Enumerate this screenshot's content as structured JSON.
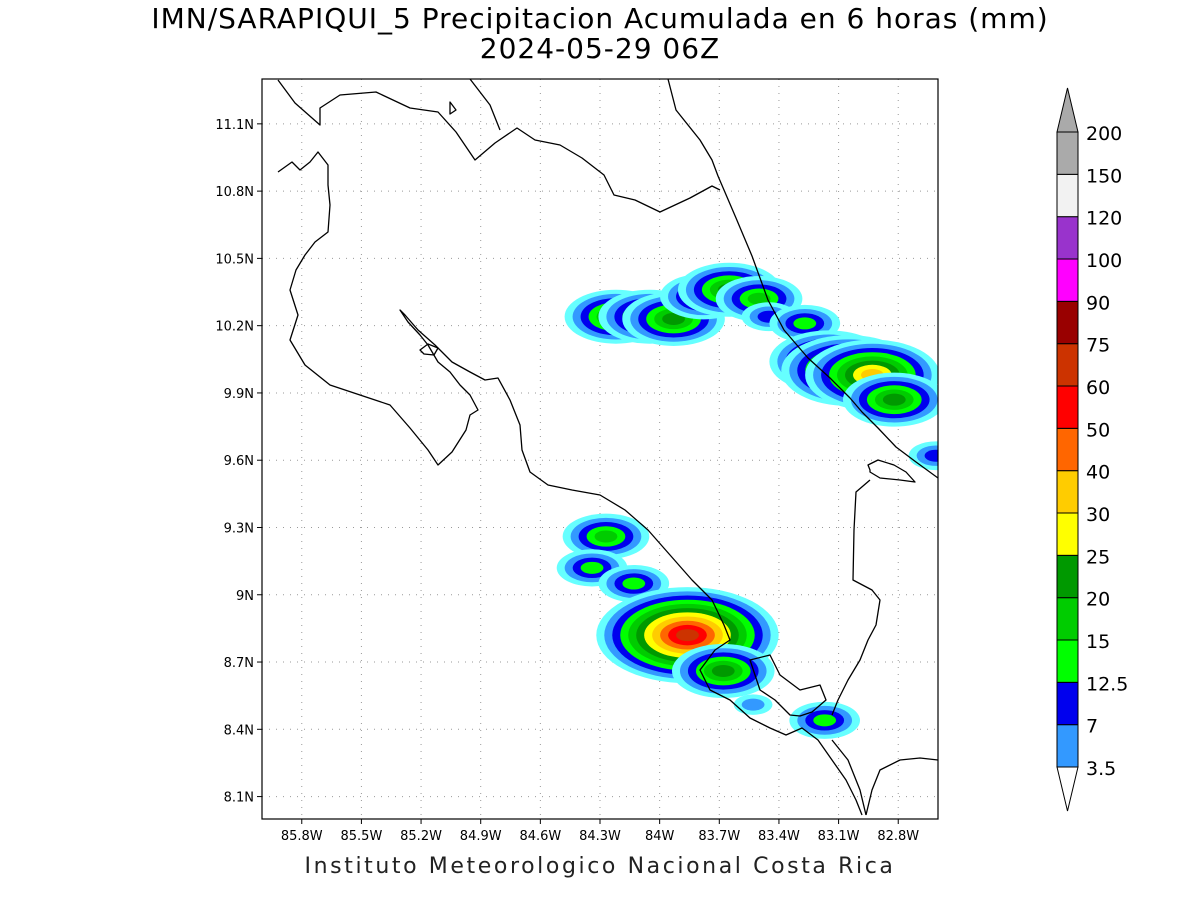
{
  "header": {
    "title": "IMN/SARAPIQUI_5 Precipitacion Acumulada en 6 horas (mm)",
    "subtitle": "2024-05-29 06Z"
  },
  "footer": {
    "credit": "Instituto Meteorologico Nacional Costa Rica"
  },
  "map": {
    "lon_range": [
      -86.0,
      -82.6
    ],
    "lat_range": [
      8.0,
      11.3
    ],
    "lat_ticks": [
      {
        "v": 11.1,
        "label": "11.1N"
      },
      {
        "v": 10.8,
        "label": "10.8N"
      },
      {
        "v": 10.5,
        "label": "10.5N"
      },
      {
        "v": 10.2,
        "label": "10.2N"
      },
      {
        "v": 9.9,
        "label": "9.9N"
      },
      {
        "v": 9.6,
        "label": "9.6N"
      },
      {
        "v": 9.3,
        "label": "9.3N"
      },
      {
        "v": 9.0,
        "label": "9N"
      },
      {
        "v": 8.7,
        "label": "8.7N"
      },
      {
        "v": 8.4,
        "label": "8.4N"
      },
      {
        "v": 8.1,
        "label": "8.1N"
      }
    ],
    "lon_ticks": [
      {
        "v": -85.8,
        "label": "85.8W"
      },
      {
        "v": -85.5,
        "label": "85.5W"
      },
      {
        "v": -85.2,
        "label": "85.2W"
      },
      {
        "v": -84.9,
        "label": "84.9W"
      },
      {
        "v": -84.6,
        "label": "84.6W"
      },
      {
        "v": -84.3,
        "label": "84.3W"
      },
      {
        "v": -84.0,
        "label": "84W"
      },
      {
        "v": -83.7,
        "label": "83.7W"
      },
      {
        "v": -83.4,
        "label": "83.4W"
      },
      {
        "v": -83.1,
        "label": "83.1W"
      },
      {
        "v": -82.8,
        "label": "82.8W"
      }
    ],
    "grid": "dotted"
  },
  "colorbar": {
    "labels": [
      "3.5",
      "7",
      "12.5",
      "15",
      "20",
      "25",
      "30",
      "40",
      "50",
      "60",
      "75",
      "90",
      "100",
      "120",
      "150",
      "200"
    ],
    "colors": [
      "#66ffff",
      "#3399ff",
      "#0000ee",
      "#00ff00",
      "#00cc00",
      "#009900",
      "#ffff00",
      "#ffcc00",
      "#ff6600",
      "#ff0000",
      "#cc3300",
      "#990000",
      "#ff00ff",
      "#9933cc",
      "#f2f2f2",
      "#aaaaaa"
    ],
    "under_color": "#ffffff",
    "over_color": "#aaaaaa"
  },
  "rain_cells": [
    {
      "lon": -84.22,
      "lat": 10.24,
      "level": 5
    },
    {
      "lon": -84.05,
      "lat": 10.24,
      "level": 5
    },
    {
      "lon": -83.93,
      "lat": 10.23,
      "level": 5
    },
    {
      "lon": -83.78,
      "lat": 10.33,
      "level": 4
    },
    {
      "lon": -83.65,
      "lat": 10.36,
      "level": 5
    },
    {
      "lon": -83.5,
      "lat": 10.32,
      "level": 4
    },
    {
      "lon": -83.45,
      "lat": 10.24,
      "level": 2
    },
    {
      "lon": -83.27,
      "lat": 10.21,
      "level": 3
    },
    {
      "lon": -83.15,
      "lat": 10.04,
      "level": 6
    },
    {
      "lon": -83.05,
      "lat": 10.0,
      "level": 7
    },
    {
      "lon": -82.93,
      "lat": 9.98,
      "level": 7
    },
    {
      "lon": -82.82,
      "lat": 9.87,
      "level": 5
    },
    {
      "lon": -82.61,
      "lat": 9.62,
      "level": 2
    },
    {
      "lon": -84.27,
      "lat": 9.26,
      "level": 4
    },
    {
      "lon": -84.34,
      "lat": 9.12,
      "level": 3
    },
    {
      "lon": -84.13,
      "lat": 9.05,
      "level": 3
    },
    {
      "lon": -83.99,
      "lat": 8.85,
      "level": 6
    },
    {
      "lon": -83.86,
      "lat": 8.82,
      "level": 10
    },
    {
      "lon": -83.68,
      "lat": 8.66,
      "level": 5
    },
    {
      "lon": -83.53,
      "lat": 8.51,
      "level": 1
    },
    {
      "lon": -83.17,
      "lat": 8.44,
      "level": 3
    }
  ]
}
